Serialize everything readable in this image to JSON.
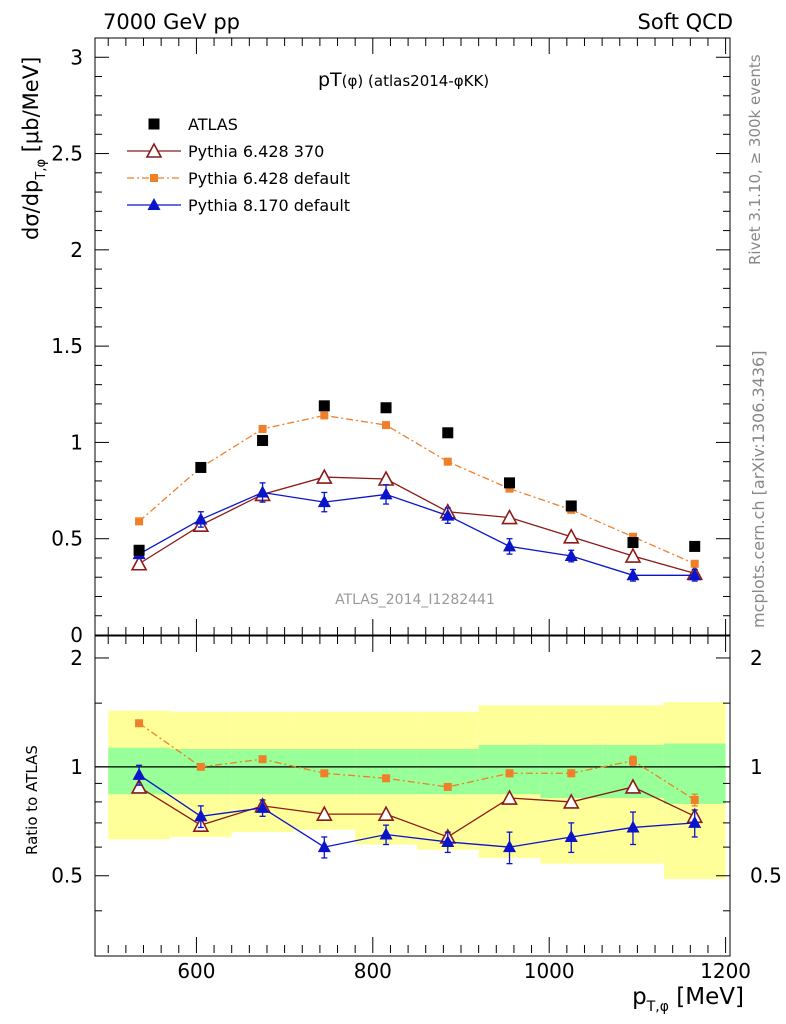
{
  "header": {
    "left": "7000 GeV pp",
    "right": "Soft QCD"
  },
  "side_labels": {
    "rivet": "Rivet 3.1.10, ≥ 300k events",
    "mcplots": "mcplots.cern.ch [arXiv:1306.3436]"
  },
  "watermark": "ATLAS_2014_I1282441",
  "colors": {
    "atlas": "#000000",
    "py6_370": "#8b1a1a",
    "py6_default": "#f07f2a",
    "py8_default": "#0a14c8",
    "band_yellow": "#ffff99",
    "band_green": "#99ff99",
    "gray_text": "#888888"
  },
  "chart_data": [
    {
      "type": "scatter",
      "title": "pT(φ) (atlas2014-φKK)",
      "title_main": "pT",
      "title_paren": "(φ)",
      "title_rest": " (atlas2014-φKK)",
      "xlabel": "p",
      "xlabel_sub": "T,φ",
      "xlabel_unit": " [MeV]",
      "ylabel": "dσ/dp",
      "ylabel_sub": "T,φ",
      "ylabel_unit": " [μb/MeV]",
      "xlim": [
        485,
        1205
      ],
      "ylim": [
        0,
        3.1
      ],
      "yticks": [
        0,
        0.5,
        1,
        1.5,
        2,
        2.5,
        3
      ],
      "ytick_labels": [
        "0",
        "0.5",
        "1",
        "1.5",
        "2",
        "2.5",
        "3"
      ],
      "legend_position": "top-left",
      "x": [
        535,
        605,
        675,
        745,
        815,
        885,
        955,
        1025,
        1095,
        1165
      ],
      "series": [
        {
          "name": "ATLAS",
          "key": "atlas",
          "marker": "square",
          "line": "none",
          "values": [
            0.44,
            0.87,
            1.01,
            1.19,
            1.18,
            1.05,
            0.79,
            0.67,
            0.48,
            0.46
          ],
          "errors": [
            0,
            0,
            0,
            0,
            0,
            0,
            0,
            0,
            0,
            0
          ]
        },
        {
          "name": "Pythia 6.428 370",
          "key": "py6_370",
          "marker": "triangle-open",
          "line": "solid",
          "values": [
            0.37,
            0.57,
            0.73,
            0.82,
            0.81,
            0.64,
            0.61,
            0.51,
            0.41,
            0.32
          ],
          "errors": [
            0,
            0,
            0,
            0,
            0,
            0,
            0,
            0,
            0,
            0
          ]
        },
        {
          "name": "Pythia 6.428 default",
          "key": "py6_default",
          "marker": "square-small",
          "line": "dashdot",
          "values": [
            0.59,
            0.87,
            1.07,
            1.14,
            1.09,
            0.9,
            0.76,
            0.65,
            0.51,
            0.37
          ],
          "errors": [
            0,
            0,
            0,
            0,
            0,
            0,
            0,
            0,
            0,
            0
          ]
        },
        {
          "name": "Pythia 8.170 default",
          "key": "py8_default",
          "marker": "triangle-filled",
          "line": "solid",
          "values": [
            0.42,
            0.6,
            0.74,
            0.69,
            0.73,
            0.62,
            0.46,
            0.41,
            0.31,
            0.31
          ],
          "errors": [
            0.02,
            0.04,
            0.05,
            0.05,
            0.05,
            0.04,
            0.04,
            0.03,
            0.03,
            0.03
          ]
        }
      ]
    },
    {
      "type": "scatter",
      "ylabel": "Ratio to ATLAS",
      "xlim": [
        485,
        1205
      ],
      "ylim": [
        0.3,
        2.3
      ],
      "xticks": [
        600,
        800,
        1000,
        1200
      ],
      "xtick_labels": [
        "600",
        "800",
        "1000",
        "1200"
      ],
      "yticks": [
        0.5,
        1,
        2
      ],
      "ytick_labels": [
        "0.5",
        "1",
        "2"
      ],
      "reference_line": 1,
      "bins": [
        [
          500,
          570
        ],
        [
          570,
          640
        ],
        [
          640,
          710
        ],
        [
          710,
          780
        ],
        [
          780,
          850
        ],
        [
          850,
          920
        ],
        [
          920,
          990
        ],
        [
          990,
          1060
        ],
        [
          1060,
          1130
        ],
        [
          1130,
          1200
        ]
      ],
      "band_yellow": [
        [
          0.63,
          1.43
        ],
        [
          0.64,
          1.42
        ],
        [
          0.66,
          1.42
        ],
        [
          0.67,
          1.42
        ],
        [
          0.61,
          1.42
        ],
        [
          0.59,
          1.42
        ],
        [
          0.56,
          1.48
        ],
        [
          0.54,
          1.48
        ],
        [
          0.54,
          1.48
        ],
        [
          0.49,
          1.51
        ]
      ],
      "band_green": [
        [
          0.84,
          1.13
        ],
        [
          0.84,
          1.12
        ],
        [
          0.84,
          1.12
        ],
        [
          0.84,
          1.12
        ],
        [
          0.84,
          1.12
        ],
        [
          0.84,
          1.12
        ],
        [
          0.84,
          1.15
        ],
        [
          0.82,
          1.15
        ],
        [
          0.82,
          1.15
        ],
        [
          0.79,
          1.16
        ]
      ],
      "x": [
        535,
        605,
        675,
        745,
        815,
        885,
        955,
        1025,
        1095,
        1165
      ],
      "series": [
        {
          "name": "Pythia 6.428 370",
          "key": "py6_370",
          "marker": "triangle-open",
          "line": "solid",
          "values": [
            0.88,
            0.69,
            0.78,
            0.74,
            0.74,
            0.64,
            0.82,
            0.8,
            0.88,
            0.73
          ],
          "errors": [
            0,
            0,
            0,
            0,
            0,
            0,
            0,
            0,
            0,
            0
          ]
        },
        {
          "name": "Pythia 6.428 default",
          "key": "py6_default",
          "marker": "square-small",
          "line": "dashdot",
          "values": [
            1.32,
            1.0,
            1.05,
            0.96,
            0.93,
            0.88,
            0.96,
            0.96,
            1.04,
            0.81
          ],
          "errors": [
            0.02,
            0.01,
            0.01,
            0.01,
            0.01,
            0.01,
            0.02,
            0.02,
            0.03,
            0.03
          ]
        },
        {
          "name": "Pythia 8.170 default",
          "key": "py8_default",
          "marker": "triangle-filled",
          "line": "solid",
          "values": [
            0.95,
            0.73,
            0.77,
            0.6,
            0.65,
            0.62,
            0.6,
            0.64,
            0.68,
            0.7
          ],
          "errors": [
            0.06,
            0.05,
            0.04,
            0.04,
            0.04,
            0.04,
            0.06,
            0.06,
            0.07,
            0.06
          ]
        }
      ]
    }
  ]
}
